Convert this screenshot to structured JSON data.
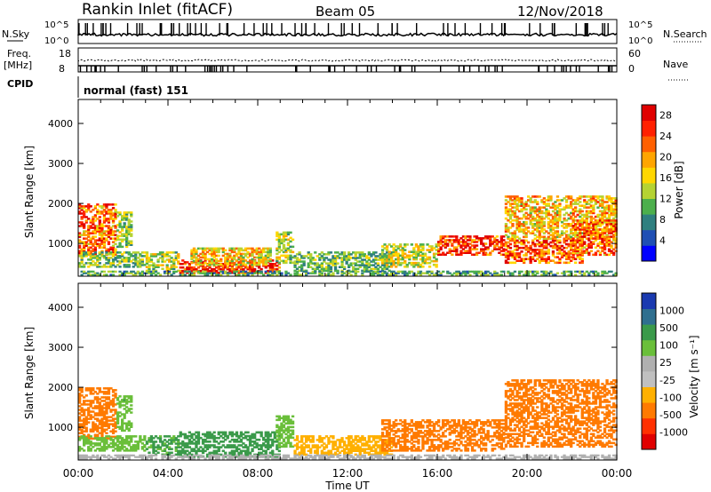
{
  "header": {
    "station": "Rankin Inlet (fitACF)",
    "beam": "Beam 05",
    "date": "12/Nov/2018"
  },
  "aux": {
    "nsky_label": "N.Sky",
    "nsky_ticks": [
      "10^5",
      "10^0"
    ],
    "nsearch_label": "N.Search",
    "freq_label": "Freq.",
    "freq_unit": "[MHz]",
    "freq_ticks": [
      "18",
      "8"
    ],
    "nave_ticks": [
      "60",
      "0"
    ],
    "nave_label": "Nave",
    "cpid_label": "CPID",
    "cpid_text": "normal (fast) 151"
  },
  "colors": {
    "power_scale": [
      "#0000ff",
      "#1f4fb4",
      "#2f7f7f",
      "#4caf4c",
      "#b5d333",
      "#ffd700",
      "#ffa500",
      "#ff6000",
      "#ff2000",
      "#e00000"
    ],
    "velocity_scale": [
      "#e00000",
      "#ff3000",
      "#ff7a00",
      "#ffb000",
      "#c0c0c0",
      "#b0b0b0",
      "#6abf3a",
      "#3a9a4a",
      "#2f6f8f",
      "#1a3ab0"
    ]
  },
  "chart_data": [
    {
      "type": "heatmap",
      "panel": "power",
      "xlabel": "Time UT",
      "ylabel": "Slant Range [km]",
      "x_ticks": [
        "00:00",
        "04:00",
        "08:00",
        "12:00",
        "16:00",
        "20:00",
        "00:00"
      ],
      "xlim_hours": [
        0,
        24
      ],
      "y_ticks": [
        "1000",
        "2000",
        "3000",
        "4000"
      ],
      "ylim": [
        180,
        4600
      ],
      "colorbar_label": "Power [dB]",
      "colorbar_ticks": [
        "4",
        "8",
        "12",
        "16",
        "20",
        "24",
        "28"
      ],
      "clim": [
        0,
        30
      ],
      "regions": [
        {
          "t0": 0.0,
          "t1": 1.7,
          "r0": 700,
          "r1": 2000,
          "v": 22
        },
        {
          "t0": 1.7,
          "t1": 2.4,
          "r0": 900,
          "r1": 1800,
          "v": 13
        },
        {
          "t0": 0.0,
          "t1": 3.0,
          "r0": 400,
          "r1": 800,
          "v": 12
        },
        {
          "t0": 3.0,
          "t1": 4.5,
          "r0": 300,
          "r1": 800,
          "v": 14
        },
        {
          "t0": 4.5,
          "t1": 9.0,
          "r0": 250,
          "r1": 600,
          "v": 27
        },
        {
          "t0": 5.0,
          "t1": 8.6,
          "r0": 450,
          "r1": 900,
          "v": 17
        },
        {
          "t0": 8.8,
          "t1": 9.6,
          "r0": 500,
          "r1": 1300,
          "v": 14
        },
        {
          "t0": 9.6,
          "t1": 14.0,
          "r0": 300,
          "r1": 800,
          "v": 11
        },
        {
          "t0": 13.5,
          "t1": 16.0,
          "r0": 400,
          "r1": 1000,
          "v": 15
        },
        {
          "t0": 16.0,
          "t1": 19.0,
          "r0": 700,
          "r1": 1200,
          "v": 26
        },
        {
          "t0": 19.0,
          "t1": 22.5,
          "r0": 500,
          "r1": 1100,
          "v": 24
        },
        {
          "t0": 19.0,
          "t1": 24.0,
          "r0": 1100,
          "r1": 2200,
          "v": 18
        },
        {
          "t0": 22.0,
          "t1": 24.0,
          "r0": 700,
          "r1": 1600,
          "v": 22
        },
        {
          "t0": 0.0,
          "t1": 24.0,
          "r0": 200,
          "r1": 320,
          "v": 10
        }
      ]
    },
    {
      "type": "heatmap",
      "panel": "velocity",
      "xlabel": "Time UT",
      "ylabel": "Slant Range [km]",
      "x_ticks": [
        "00:00",
        "04:00",
        "08:00",
        "12:00",
        "16:00",
        "20:00",
        "00:00"
      ],
      "xlim_hours": [
        0,
        24
      ],
      "y_ticks": [
        "1000",
        "2000",
        "3000",
        "4000"
      ],
      "ylim": [
        180,
        4600
      ],
      "colorbar_label": "Velocity [m s⁻¹]",
      "colorbar_ticks": [
        "1000",
        "500",
        "100",
        "25",
        "-25",
        "-100",
        "-500",
        "-1000"
      ],
      "regions": [
        {
          "t0": 0.0,
          "t1": 1.7,
          "r0": 700,
          "r1": 2000,
          "v": -300
        },
        {
          "t0": 1.7,
          "t1": 2.4,
          "r0": 900,
          "r1": 1800,
          "v": 80
        },
        {
          "t0": 0.0,
          "t1": 3.0,
          "r0": 400,
          "r1": 800,
          "v": 60
        },
        {
          "t0": 3.0,
          "t1": 4.5,
          "r0": 300,
          "r1": 800,
          "v": 120
        },
        {
          "t0": 4.5,
          "t1": 9.0,
          "r0": 250,
          "r1": 900,
          "v": 150
        },
        {
          "t0": 8.8,
          "t1": 9.6,
          "r0": 500,
          "r1": 1300,
          "v": 60
        },
        {
          "t0": 9.6,
          "t1": 14.0,
          "r0": 300,
          "r1": 800,
          "v": -60
        },
        {
          "t0": 13.5,
          "t1": 19.0,
          "r0": 400,
          "r1": 1200,
          "v": -200
        },
        {
          "t0": 19.0,
          "t1": 24.0,
          "r0": 500,
          "r1": 2200,
          "v": -300
        },
        {
          "t0": 0.0,
          "t1": 24.0,
          "r0": 200,
          "r1": 320,
          "v": 10
        }
      ]
    }
  ]
}
